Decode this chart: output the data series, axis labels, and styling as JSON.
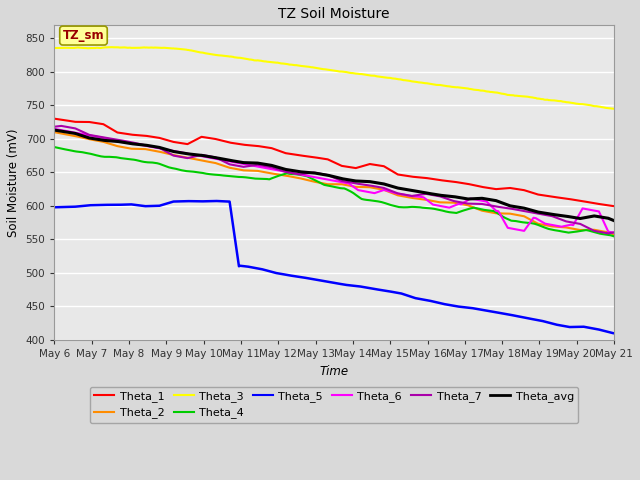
{
  "title": "TZ Soil Moisture",
  "ylabel": "Soil Moisture (mV)",
  "xlabel": "Time",
  "legend_label": "TZ_sm",
  "x_tick_labels": [
    "May 6",
    "May 7",
    "May 8",
    "May 9",
    "May 10",
    "May 11",
    "May 12",
    "May 13",
    "May 14",
    "May 15",
    "May 16",
    "May 17",
    "May 18",
    "May 19",
    "May 20",
    "May 21"
  ],
  "ylim": [
    400,
    870
  ],
  "yticks": [
    400,
    450,
    500,
    550,
    600,
    650,
    700,
    750,
    800,
    850
  ],
  "colors": {
    "Theta_1": "#ff0000",
    "Theta_2": "#ff8c00",
    "Theta_3": "#ffff00",
    "Theta_4": "#00cc00",
    "Theta_5": "#0000ff",
    "Theta_6": "#ff00ff",
    "Theta_7": "#aa00aa",
    "Theta_avg": "#000000"
  },
  "bg_color": "#d9d9d9",
  "plot_bg": "#e8e8e8",
  "legend_box_color": "#ffff99",
  "legend_box_text": "#990000",
  "n_points": 480,
  "drop_day": 4.7
}
